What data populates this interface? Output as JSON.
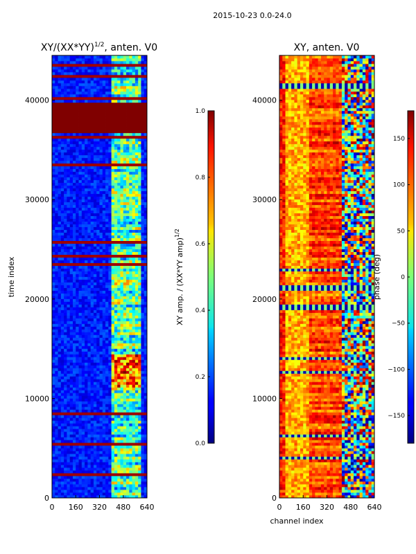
{
  "figure": {
    "suptitle": "2015-10-23 0.0-24.0"
  },
  "chart_data": [
    {
      "type": "heatmap",
      "title": "XY/(XX*YY)",
      "title_sup": "1/2",
      "title_suffix": ", anten. V0",
      "xlabel": "",
      "ylabel": "time index",
      "xlim": [
        0,
        640
      ],
      "ylim": [
        0,
        44500
      ],
      "xticks": [
        0,
        160,
        320,
        480,
        640
      ],
      "xtick_labels": [
        "0",
        "160",
        "320",
        "480",
        "640"
      ],
      "yticks": [
        0,
        10000,
        20000,
        30000,
        40000
      ],
      "ytick_labels": [
        "0",
        "10000",
        "20000",
        "30000",
        "40000"
      ],
      "colormap": "jet",
      "colorbar": {
        "label": "XY amp. / (XX*YY amp)",
        "label_sup": "1/2",
        "range": [
          0.0,
          1.0
        ],
        "ticks": [
          0.0,
          0.2,
          0.4,
          0.6,
          0.8,
          1.0
        ],
        "tick_labels": [
          "0.0",
          "0.2",
          "0.4",
          "0.6",
          "0.8",
          "1.0"
        ]
      },
      "features": {
        "saturated_block_time_range": [
          36600,
          39700
        ],
        "bright_channel_range": [
          410,
          600
        ],
        "strong_burst_time_range": [
          11000,
          14500
        ]
      }
    },
    {
      "type": "heatmap",
      "title": "XY, anten. V0",
      "xlabel": "channel index",
      "ylabel": "",
      "xlim": [
        0,
        640
      ],
      "ylim": [
        0,
        44500
      ],
      "xticks": [
        0,
        160,
        320,
        480,
        640
      ],
      "xtick_labels": [
        "0",
        "160",
        "320",
        "480",
        "640"
      ],
      "yticks": [
        0,
        10000,
        20000,
        30000,
        40000
      ],
      "ytick_labels": [
        "0",
        "10000",
        "20000",
        "30000",
        "40000"
      ],
      "colormap": "jet",
      "colorbar": {
        "label": "phase (deg)",
        "range": [
          -180,
          180
        ],
        "ticks": [
          -150,
          -100,
          -50,
          0,
          50,
          100,
          150
        ],
        "tick_labels": [
          "−150",
          "−100",
          "−50",
          "0",
          "50",
          "100",
          "150"
        ]
      }
    }
  ]
}
